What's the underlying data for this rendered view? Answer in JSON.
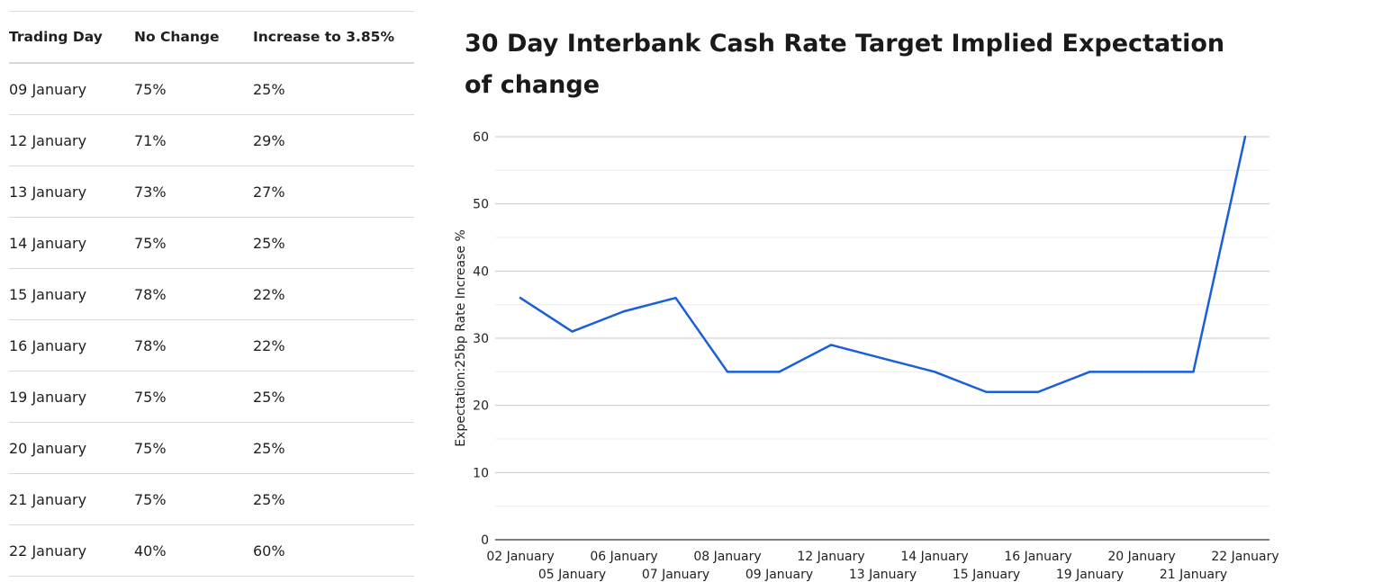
{
  "table": {
    "headers": [
      "Trading Day",
      "No Change",
      "Increase to 3.85%"
    ],
    "rows": [
      [
        "09 January",
        "75%",
        "25%"
      ],
      [
        "12 January",
        "71%",
        "29%"
      ],
      [
        "13 January",
        "73%",
        "27%"
      ],
      [
        "14 January",
        "75%",
        "25%"
      ],
      [
        "15 January",
        "78%",
        "22%"
      ],
      [
        "16 January",
        "78%",
        "22%"
      ],
      [
        "19 January",
        "75%",
        "25%"
      ],
      [
        "20 January",
        "75%",
        "25%"
      ],
      [
        "21 January",
        "75%",
        "25%"
      ],
      [
        "22 January",
        "40%",
        "60%"
      ]
    ]
  },
  "chart_data": {
    "type": "line",
    "title": "30 Day Interbank Cash Rate Target Implied Expectation of change",
    "xlabel": "",
    "ylabel": "Expectation:25bp Rate Increase %",
    "categories": [
      "02 January",
      "05 January",
      "06 January",
      "07 January",
      "08 January",
      "09 January",
      "12 January",
      "13 January",
      "14 January",
      "15 January",
      "16 January",
      "19 January",
      "20 January",
      "21 January",
      "22 January"
    ],
    "series": [
      {
        "name": "Expectation:25bp Rate Increase %",
        "color": "#1a5fd8",
        "values": [
          36,
          31,
          34,
          36,
          25,
          25,
          29,
          27,
          25,
          22,
          22,
          25,
          25,
          25,
          60
        ]
      }
    ],
    "ylim": [
      0,
      60
    ],
    "yticks": [
      0,
      10,
      20,
      30,
      40,
      50,
      60
    ],
    "grid": true,
    "gridline_color": "#c8c8c8",
    "minor_gridline_color": "#ebebeb",
    "legend": "none"
  }
}
